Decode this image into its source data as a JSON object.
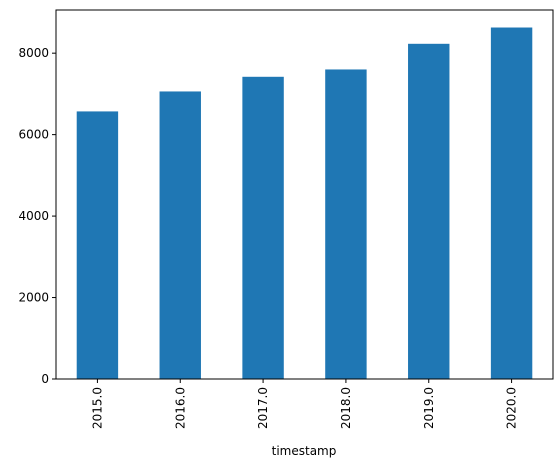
{
  "chart_data": {
    "type": "bar",
    "categories": [
      "2015.0",
      "2016.0",
      "2017.0",
      "2018.0",
      "2019.0",
      "2020.0"
    ],
    "values": [
      6570,
      7060,
      7420,
      7600,
      8230,
      8630
    ],
    "xlabel": "timestamp",
    "ylabel": "",
    "ylim": [
      0,
      9060
    ],
    "yticks": [
      0,
      2000,
      4000,
      6000,
      8000
    ],
    "grid": false,
    "legend": "none",
    "bar_color": "#1f77b4"
  }
}
